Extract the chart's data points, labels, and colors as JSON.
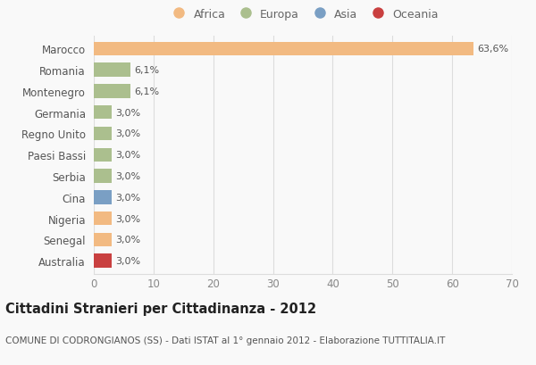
{
  "countries": [
    "Marocco",
    "Romania",
    "Montenegro",
    "Germania",
    "Regno Unito",
    "Paesi Bassi",
    "Serbia",
    "Cina",
    "Nigeria",
    "Senegal",
    "Australia"
  ],
  "values": [
    63.6,
    6.1,
    6.1,
    3.0,
    3.0,
    3.0,
    3.0,
    3.0,
    3.0,
    3.0,
    3.0
  ],
  "labels": [
    "63,6%",
    "6,1%",
    "6,1%",
    "3,0%",
    "3,0%",
    "3,0%",
    "3,0%",
    "3,0%",
    "3,0%",
    "3,0%",
    "3,0%"
  ],
  "colors": [
    "#F2BA82",
    "#ABBF8E",
    "#ABBF8E",
    "#ABBF8E",
    "#ABBF8E",
    "#ABBF8E",
    "#ABBF8E",
    "#7A9FC4",
    "#F2BA82",
    "#F2BA82",
    "#C94040"
  ],
  "legend": [
    {
      "label": "Africa",
      "color": "#F2BA82"
    },
    {
      "label": "Europa",
      "color": "#ABBF8E"
    },
    {
      "label": "Asia",
      "color": "#7A9FC4"
    },
    {
      "label": "Oceania",
      "color": "#C94040"
    }
  ],
  "title": "Cittadini Stranieri per Cittadinanza - 2012",
  "subtitle": "COMUNE DI CODRONGIANOS (SS) - Dati ISTAT al 1° gennaio 2012 - Elaborazione TUTTITALIA.IT",
  "xlim": [
    0,
    70
  ],
  "xticks": [
    0,
    10,
    20,
    30,
    40,
    50,
    60,
    70
  ],
  "background_color": "#f9f9f9",
  "grid_color": "#dddddd"
}
